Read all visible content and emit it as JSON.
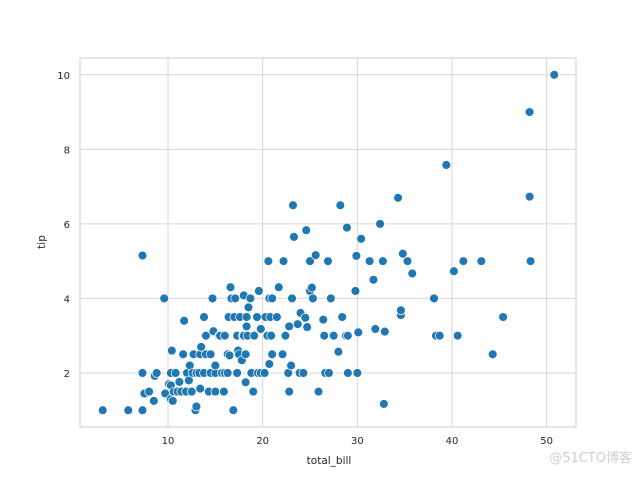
{
  "watermark": "@51CTO博客",
  "chart_data": {
    "type": "scatter",
    "title": "",
    "xlabel": "total_bill",
    "ylabel": "tip",
    "xlim": [
      0.7,
      53.1
    ],
    "ylim": [
      0.55,
      10.45
    ],
    "xticks": [
      10,
      20,
      30,
      40,
      50
    ],
    "yticks": [
      2,
      4,
      6,
      8,
      10
    ],
    "grid": true,
    "point_color": "#1f77b4",
    "points": [
      [
        3.1,
        1.0
      ],
      [
        5.8,
        1.0
      ],
      [
        7.3,
        1.0
      ],
      [
        7.5,
        1.45
      ],
      [
        7.3,
        2.0
      ],
      [
        7.3,
        5.15
      ],
      [
        8.0,
        1.5
      ],
      [
        8.5,
        1.25
      ],
      [
        8.6,
        1.92
      ],
      [
        8.8,
        2.0
      ],
      [
        9.6,
        4.0
      ],
      [
        9.7,
        1.45
      ],
      [
        10.1,
        1.7
      ],
      [
        10.3,
        1.3
      ],
      [
        10.3,
        2.0
      ],
      [
        10.3,
        1.67
      ],
      [
        10.4,
        2.6
      ],
      [
        10.5,
        1.25
      ],
      [
        10.6,
        1.5
      ],
      [
        10.8,
        2.0
      ],
      [
        11.0,
        1.5
      ],
      [
        11.2,
        1.76
      ],
      [
        11.4,
        1.5
      ],
      [
        11.6,
        2.5
      ],
      [
        11.7,
        3.4
      ],
      [
        11.9,
        1.5
      ],
      [
        12.0,
        2.0
      ],
      [
        12.2,
        1.8
      ],
      [
        12.3,
        2.2
      ],
      [
        12.5,
        1.5
      ],
      [
        12.6,
        2.0
      ],
      [
        12.7,
        2.5
      ],
      [
        12.9,
        1.0
      ],
      [
        13.0,
        1.1
      ],
      [
        13.0,
        2.0
      ],
      [
        13.3,
        2.0
      ],
      [
        13.4,
        2.5
      ],
      [
        13.4,
        1.58
      ],
      [
        13.5,
        2.7
      ],
      [
        13.8,
        2.0
      ],
      [
        13.8,
        3.5
      ],
      [
        14.0,
        2.5
      ],
      [
        14.0,
        3.0
      ],
      [
        14.3,
        1.5
      ],
      [
        14.5,
        2.0
      ],
      [
        14.5,
        2.5
      ],
      [
        14.7,
        4.0
      ],
      [
        14.8,
        3.12
      ],
      [
        15.0,
        2.0
      ],
      [
        15.0,
        1.5
      ],
      [
        15.0,
        2.2
      ],
      [
        15.4,
        3.0
      ],
      [
        15.5,
        3.0
      ],
      [
        15.7,
        2.0
      ],
      [
        15.9,
        1.5
      ],
      [
        16.0,
        2.0
      ],
      [
        16.0,
        3.0
      ],
      [
        16.3,
        2.0
      ],
      [
        16.3,
        2.5
      ],
      [
        16.4,
        3.5
      ],
      [
        16.5,
        2.47
      ],
      [
        16.6,
        4.3
      ],
      [
        16.7,
        4.0
      ],
      [
        16.9,
        1.0
      ],
      [
        17.0,
        3.5
      ],
      [
        17.1,
        4.0
      ],
      [
        17.3,
        2.0
      ],
      [
        17.3,
        3.0
      ],
      [
        17.4,
        2.6
      ],
      [
        17.5,
        2.5
      ],
      [
        17.6,
        3.5
      ],
      [
        17.8,
        2.34
      ],
      [
        17.9,
        3.0
      ],
      [
        18.0,
        4.08
      ],
      [
        18.0,
        3.0
      ],
      [
        18.2,
        1.75
      ],
      [
        18.2,
        2.5
      ],
      [
        18.3,
        3.5
      ],
      [
        18.3,
        3.25
      ],
      [
        18.4,
        3.0
      ],
      [
        18.5,
        3.76
      ],
      [
        18.7,
        4.0
      ],
      [
        18.8,
        2.0
      ],
      [
        19.0,
        1.5
      ],
      [
        19.1,
        3.0
      ],
      [
        19.4,
        3.5
      ],
      [
        19.5,
        2.0
      ],
      [
        19.6,
        4.2
      ],
      [
        19.8,
        3.18
      ],
      [
        19.8,
        2.0
      ],
      [
        20.2,
        2.0
      ],
      [
        20.3,
        3.5
      ],
      [
        20.5,
        3.0
      ],
      [
        20.6,
        5.0
      ],
      [
        20.7,
        4.0
      ],
      [
        20.7,
        2.24
      ],
      [
        20.8,
        3.5
      ],
      [
        20.9,
        3.0
      ],
      [
        21.0,
        4.0
      ],
      [
        21.0,
        2.5
      ],
      [
        21.5,
        3.5
      ],
      [
        21.7,
        4.3
      ],
      [
        22.1,
        2.5
      ],
      [
        22.2,
        5.0
      ],
      [
        22.4,
        3.0
      ],
      [
        22.7,
        2.0
      ],
      [
        22.8,
        3.25
      ],
      [
        22.8,
        1.5
      ],
      [
        23.0,
        2.2
      ],
      [
        23.1,
        4.0
      ],
      [
        23.2,
        6.5
      ],
      [
        23.3,
        5.65
      ],
      [
        23.7,
        3.31
      ],
      [
        23.9,
        2.0
      ],
      [
        24.0,
        3.61
      ],
      [
        24.3,
        2.0
      ],
      [
        24.5,
        3.48
      ],
      [
        24.6,
        5.83
      ],
      [
        24.7,
        3.23
      ],
      [
        25.0,
        4.2
      ],
      [
        25.0,
        5.0
      ],
      [
        25.2,
        4.29
      ],
      [
        25.3,
        4.0
      ],
      [
        25.6,
        5.16
      ],
      [
        25.9,
        1.5
      ],
      [
        26.4,
        3.43
      ],
      [
        26.5,
        3.0
      ],
      [
        26.6,
        2.0
      ],
      [
        26.9,
        5.0
      ],
      [
        27.0,
        2.0
      ],
      [
        27.2,
        4.0
      ],
      [
        27.5,
        3.0
      ],
      [
        28.0,
        2.57
      ],
      [
        28.2,
        6.5
      ],
      [
        28.4,
        3.5
      ],
      [
        28.8,
        3.0
      ],
      [
        28.9,
        5.9
      ],
      [
        29.0,
        3.0
      ],
      [
        29.0,
        2.0
      ],
      [
        29.8,
        4.2
      ],
      [
        29.9,
        5.14
      ],
      [
        30.0,
        2.0
      ],
      [
        30.1,
        3.09
      ],
      [
        30.4,
        5.6
      ],
      [
        31.3,
        5.0
      ],
      [
        31.7,
        4.5
      ],
      [
        31.9,
        3.18
      ],
      [
        32.4,
        6.0
      ],
      [
        32.7,
        5.0
      ],
      [
        32.8,
        1.17
      ],
      [
        32.9,
        3.11
      ],
      [
        34.3,
        6.7
      ],
      [
        34.6,
        3.55
      ],
      [
        34.6,
        3.68
      ],
      [
        34.8,
        5.2
      ],
      [
        35.3,
        5.0
      ],
      [
        35.8,
        4.67
      ],
      [
        38.1,
        4.0
      ],
      [
        38.3,
        3.0
      ],
      [
        38.7,
        3.0
      ],
      [
        39.4,
        7.58
      ],
      [
        40.2,
        4.73
      ],
      [
        40.6,
        3.0
      ],
      [
        41.2,
        5.0
      ],
      [
        43.1,
        5.0
      ],
      [
        44.3,
        2.5
      ],
      [
        45.4,
        3.5
      ],
      [
        48.2,
        9.0
      ],
      [
        48.2,
        6.73
      ],
      [
        48.3,
        5.0
      ],
      [
        50.8,
        10.0
      ]
    ]
  }
}
